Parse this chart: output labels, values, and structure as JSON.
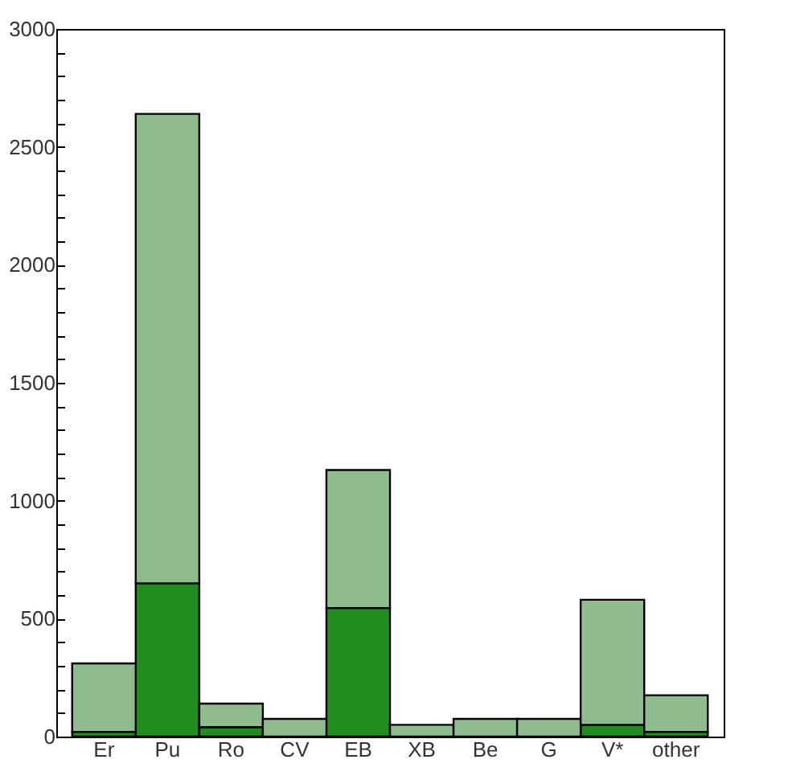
{
  "chart_data": {
    "type": "bar",
    "stacked": true,
    "categories": [
      "Er",
      "Pu",
      "Ro",
      "CV",
      "EB",
      "XB",
      "Be",
      "G",
      "V*",
      "other"
    ],
    "series": [
      {
        "color": "#228b22",
        "values": [
          20,
          650,
          40,
          0,
          545,
          0,
          0,
          0,
          50,
          20
        ]
      },
      {
        "color": "#8fbc8f",
        "values": [
          290,
          1990,
          100,
          75,
          585,
          50,
          75,
          75,
          530,
          155
        ]
      }
    ],
    "ylim": [
      0,
      3000
    ],
    "yticks": [
      0,
      {
        "value": 100,
        "label": null
      },
      {
        "value": 200,
        "label": null
      },
      {
        "value": 300,
        "label": null
      },
      {
        "value": 400,
        "label": null
      },
      500,
      {
        "value": 600,
        "label": null
      },
      {
        "value": 700,
        "label": null
      },
      {
        "value": 800,
        "label": null
      },
      {
        "value": 900,
        "label": null
      },
      1000,
      {
        "value": 1100,
        "label": null
      },
      {
        "value": 1200,
        "label": null
      },
      {
        "value": 1300,
        "label": null
      },
      {
        "value": 1400,
        "label": null
      },
      1500,
      {
        "value": 1600,
        "label": null
      },
      {
        "value": 1700,
        "label": null
      },
      {
        "value": 1800,
        "label": null
      },
      {
        "value": 1900,
        "label": null
      },
      2000,
      {
        "value": 2100,
        "label": null
      },
      {
        "value": 2200,
        "label": null
      },
      {
        "value": 2300,
        "label": null
      },
      {
        "value": 2400,
        "label": null
      },
      2500,
      {
        "value": 2600,
        "label": null
      },
      {
        "value": 2700,
        "label": null
      },
      {
        "value": 2800,
        "label": null
      },
      {
        "value": 2900,
        "label": null
      },
      3000
    ],
    "grid": false,
    "legend": false
  }
}
